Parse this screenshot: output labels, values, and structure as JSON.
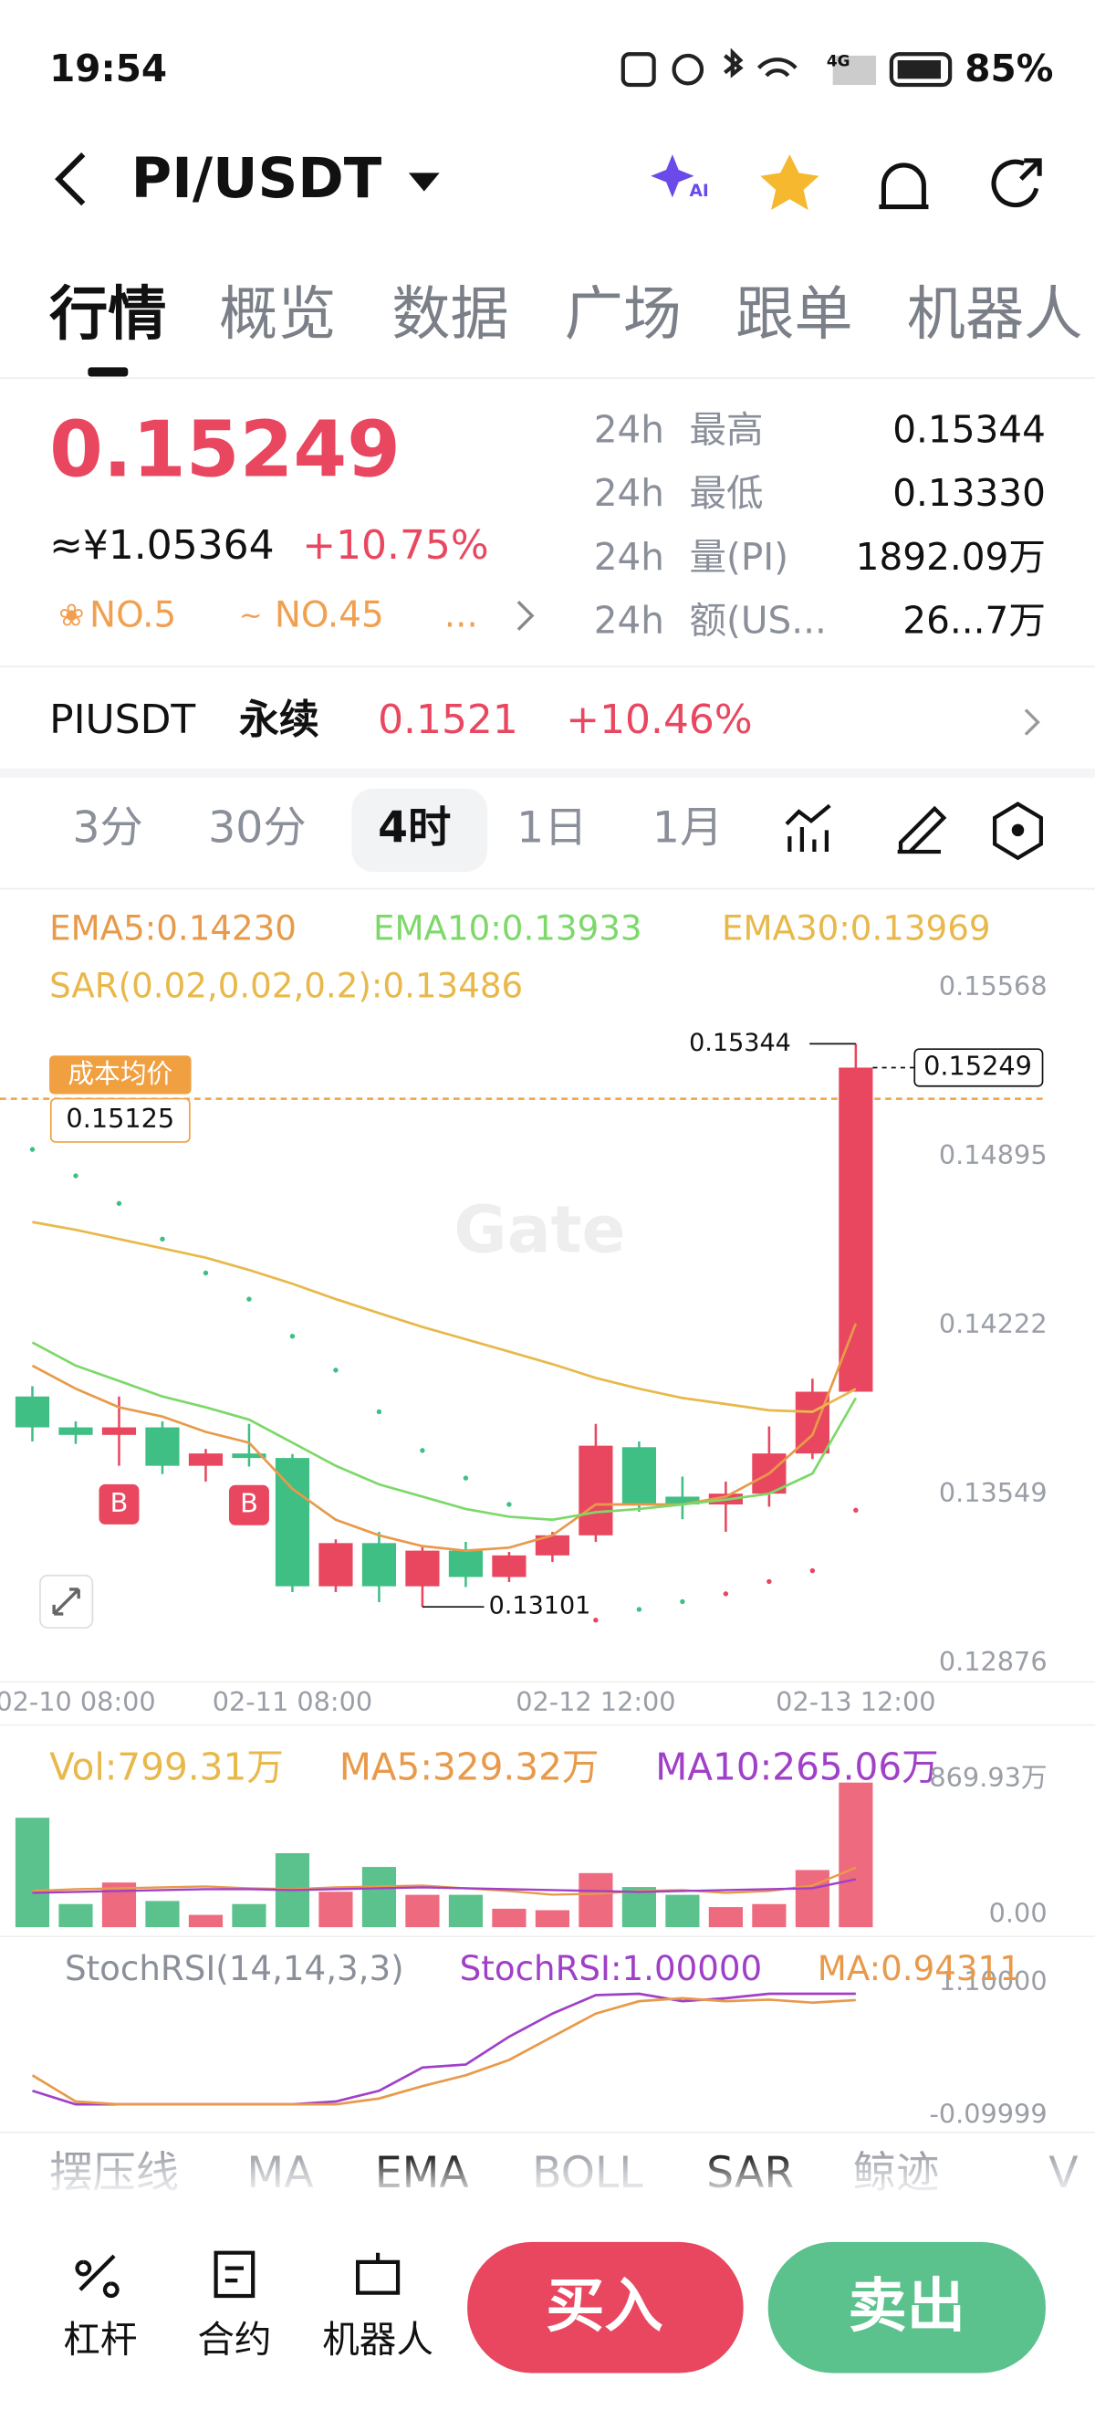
{
  "status_bar": {
    "time": "19:54",
    "network": "4G",
    "battery": "85%"
  },
  "header": {
    "pair": "PI/USDT",
    "ai_badge": "AI"
  },
  "tabs": [
    "行情",
    "概览",
    "数据",
    "广场",
    "跟单",
    "机器人"
  ],
  "ticker": {
    "price": "0.15249",
    "cny": "≈¥1.05364",
    "change": "+10.75%",
    "rank_hot": "NO.5",
    "rank_gain": "NO.45",
    "more": "..."
  },
  "stats": [
    [
      "24h",
      "最高",
      "0.15344"
    ],
    [
      "24h",
      "最低",
      "0.13330"
    ],
    [
      "24h",
      "量(PI)",
      "1892.09万"
    ],
    [
      "24h",
      "额(US...",
      "26...7万"
    ]
  ],
  "perpetual": {
    "name": "PIUSDT",
    "label": "永续",
    "price": "0.1521",
    "change": "+10.46%"
  },
  "intervals": [
    "3分",
    "30分",
    "4时",
    "1日",
    "1月"
  ],
  "chart": {
    "type": "candlestick",
    "watermark": "Gate",
    "ylim": [
      0.12833,
      0.15906
    ],
    "yticks": [
      0.15568,
      0.14895,
      0.14222,
      0.13549,
      0.12876
    ],
    "up_color": "#e8475f",
    "down_color": "#3fbf84",
    "categories": [
      null,
      "02-10 08:00",
      null,
      null,
      null,
      null,
      "02-11 08:00",
      null,
      null,
      null,
      null,
      null,
      null,
      "02-12 12:00",
      null,
      null,
      null,
      null,
      null,
      "02-13 12:00"
    ],
    "candles": {
      "open": [
        0.13939,
        0.13816,
        0.13786,
        0.13816,
        0.13663,
        0.13712,
        0.13694,
        0.13183,
        0.13355,
        0.13183,
        0.13325,
        0.1322,
        0.13306,
        0.13386,
        0.13737,
        0.1354,
        0.13509,
        0.13552,
        0.13712,
        0.13958
      ],
      "high": [
        0.1398,
        0.1384,
        0.13939,
        0.1384,
        0.1373,
        0.1383,
        0.1371,
        0.1337,
        0.134,
        0.1334,
        0.1336,
        0.1332,
        0.134,
        0.1383,
        0.1376,
        0.1362,
        0.136,
        0.1382,
        0.1401,
        0.15344
      ],
      "low": [
        0.1376,
        0.1375,
        0.13663,
        0.1363,
        0.136,
        0.1366,
        0.1316,
        0.1316,
        0.1312,
        0.13101,
        0.1318,
        0.132,
        0.1328,
        0.1336,
        0.1348,
        0.1345,
        0.134,
        0.135,
        0.1369,
        0.13958
      ],
      "close": [
        0.13816,
        0.13786,
        0.13816,
        0.13663,
        0.13712,
        0.13694,
        0.13183,
        0.13355,
        0.13183,
        0.13325,
        0.1322,
        0.13306,
        0.13386,
        0.13743,
        0.13509,
        0.13509,
        0.13552,
        0.13712,
        0.13958,
        0.15249
      ]
    },
    "signals": [
      null,
      null,
      "B",
      null,
      null,
      "B",
      null,
      null,
      null,
      null,
      null,
      null,
      null,
      null,
      null,
      null,
      null,
      null,
      null,
      null
    ],
    "ema": [
      {
        "name": "EMA5:0.14230",
        "color": "#e89a4a",
        "values": [
          0.14062,
          0.1397,
          0.13896,
          0.13859,
          0.13798,
          0.13755,
          0.13571,
          0.13448,
          0.13386,
          0.13343,
          0.13325,
          0.13337,
          0.13386,
          0.13509,
          0.13509,
          0.13509,
          0.1354,
          0.13632,
          0.13786,
          0.1423
        ]
      },
      {
        "name": "EMA10:0.13933",
        "color": "#7dd86a",
        "values": [
          0.14154,
          0.14062,
          0.14001,
          0.13939,
          0.13896,
          0.13847,
          0.13755,
          0.13663,
          0.13589,
          0.1354,
          0.13491,
          0.1346,
          0.13448,
          0.13478,
          0.13491,
          0.13509,
          0.13528,
          0.13552,
          0.13632,
          0.13933
        ]
      },
      {
        "name": "EMA30:0.13969",
        "color": "#e8b84a",
        "values": [
          0.14634,
          0.14603,
          0.14566,
          0.14529,
          0.14492,
          0.14443,
          0.14388,
          0.14327,
          0.14271,
          0.14216,
          0.14167,
          0.14118,
          0.14068,
          0.14013,
          0.1397,
          0.13933,
          0.13909,
          0.13884,
          0.13878,
          0.13969
        ]
      }
    ],
    "sar": {
      "name": "SAR(0.02,0.02,0.2):0.13486",
      "color": "#e8b84a",
      "values": [
        0.14923,
        0.14818,
        0.14708,
        0.14566,
        0.14431,
        0.14327,
        0.14179,
        0.14044,
        0.13878,
        0.13724,
        0.13614,
        0.13509,
        null,
        0.13048,
        0.13091,
        0.13122,
        0.13153,
        0.13202,
        0.13245,
        0.13486
      ]
    },
    "cost": {
      "label": "成本均价",
      "value": 0.15125
    }
  },
  "volume": {
    "legend": [
      "Vol:799.31万",
      "MA5:329.32万",
      "MA10:265.06万"
    ],
    "ylim": [
      0,
      869.93
    ],
    "yticks": [
      {
        "value": 869.93,
        "label": "869.93万"
      },
      {
        "value": 0,
        "label": "0.00"
      }
    ],
    "values": [
      605,
      128,
      247,
      145,
      68,
      128,
      409,
      196,
      333,
      179,
      179,
      102,
      94,
      299,
      222,
      179,
      111,
      128,
      316,
      799.31
    ],
    "series": [
      {
        "name": "MA5",
        "color": "#e89a4a",
        "values": [
          200,
          210,
          215,
          220,
          225,
          215,
          210,
          220,
          225,
          230,
          215,
          200,
          180,
          185,
          200,
          205,
          190,
          200,
          230,
          329.32
        ]
      },
      {
        "name": "MA10",
        "color": "#a040c8",
        "values": [
          190,
          195,
          200,
          205,
          210,
          210,
          205,
          210,
          215,
          220,
          215,
          210,
          205,
          200,
          195,
          200,
          205,
          210,
          215,
          265.06
        ]
      }
    ],
    "colors": [
      "#e8b84a",
      "#e89a4a",
      "#a040c8"
    ]
  },
  "stoch": {
    "legend": [
      "StochRSI(14,14,3,3)",
      "StochRSI:1.00000",
      "MA:0.94311"
    ],
    "ylim": [
      -0.09999,
      1.1
    ],
    "yticks": [
      {
        "value": 1.1,
        "label": "1.10000"
      },
      {
        "value": -0.09999,
        "label": "-0.09999"
      }
    ],
    "series": [
      {
        "name": "StochRSI",
        "color": "#a040c8",
        "values": [
          0.123,
          0,
          0,
          0,
          0,
          0,
          0,
          0.026,
          0.123,
          0.333,
          0.36,
          0.612,
          0.821,
          0.988,
          1,
          0.933,
          0.96,
          1,
          1,
          1
        ]
      },
      {
        "name": "MA",
        "color": "#e89a4a",
        "values": [
          0.263,
          0.026,
          0,
          0,
          0,
          0,
          0,
          0,
          0.053,
          0.165,
          0.263,
          0.402,
          0.612,
          0.821,
          0.933,
          0.96,
          0.933,
          0.947,
          0.92,
          0.94311
        ]
      }
    ],
    "colors": [
      "#8a8f99",
      "#a040c8",
      "#e89a4a"
    ]
  },
  "indicator_tabs": [
    "摆压线",
    "MA",
    "EMA",
    "BOLL",
    "SAR",
    "鲸迹",
    "V"
  ],
  "bottom_nav": [
    "杠杆",
    "合约",
    "机器人"
  ],
  "actions": {
    "buy": "买入",
    "sell": "卖出"
  }
}
